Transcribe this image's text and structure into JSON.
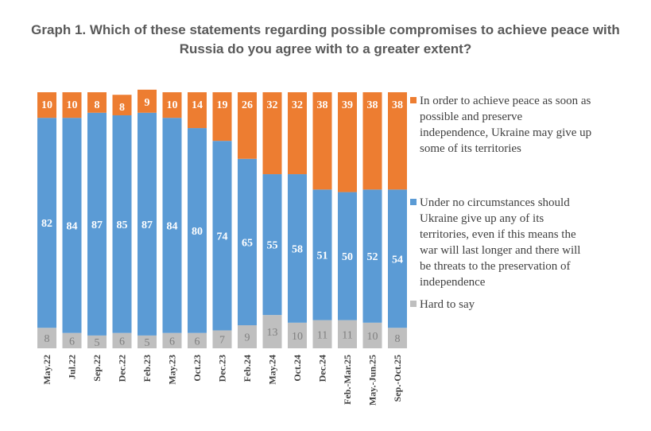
{
  "chart_data": {
    "type": "bar",
    "stacked": true,
    "orientation": "vertical",
    "title": [
      "Graph 1. Which of these statements regarding possible compromises to achieve peace with",
      "Russia do you agree with to a greater extent?"
    ],
    "categories": [
      "May.22",
      "Jul.22",
      "Sep.22",
      "Dec.22",
      "Feb.23",
      "May.23",
      "Oct.23",
      "Dec.23",
      "Feb.24",
      "May.24",
      "Oct.24",
      "Dec.24",
      "Feb.-Mar.25",
      "May.-Jun.25",
      "Sep.-Oct.25"
    ],
    "series": [
      {
        "name": "Hard to say",
        "color": "#bfbfbf",
        "values": [
          8,
          6,
          5,
          6,
          5,
          6,
          6,
          7,
          9,
          13,
          10,
          11,
          11,
          10,
          8
        ]
      },
      {
        "name": "Under no circumstances should Ukraine give up any of its territories, even if this means the war will last longer and there will be threats to the preservation of independence",
        "color": "#5b9bd5",
        "values": [
          82,
          84,
          87,
          85,
          87,
          84,
          80,
          74,
          65,
          55,
          58,
          51,
          50,
          52,
          54
        ]
      },
      {
        "name": "In order to achieve peace as soon as possible and preserve independence, Ukraine may give up some of its territories",
        "color": "#ed7d31",
        "values": [
          10,
          10,
          8,
          8,
          9,
          10,
          14,
          19,
          26,
          32,
          32,
          38,
          39,
          38,
          38
        ]
      }
    ],
    "legend": {
      "placement": "right",
      "items": [
        {
          "color": "#ed7d31",
          "lines": [
            "In order to achieve peace as soon as",
            "possible and preserve",
            "independence, Ukraine may give up",
            "some of its territories"
          ]
        },
        {
          "color": "#5b9bd5",
          "lines": [
            "Under no circumstances should",
            "Ukraine give up any of its",
            "territories, even if this means the",
            "war will last longer and there will",
            "be threats to the preservation of",
            "independence"
          ]
        },
        {
          "color": "#bfbfbf",
          "lines": [
            "Hard to say"
          ]
        }
      ]
    },
    "xlabel": "",
    "ylabel": "",
    "ylim": [
      0,
      100
    ],
    "grid": false
  }
}
